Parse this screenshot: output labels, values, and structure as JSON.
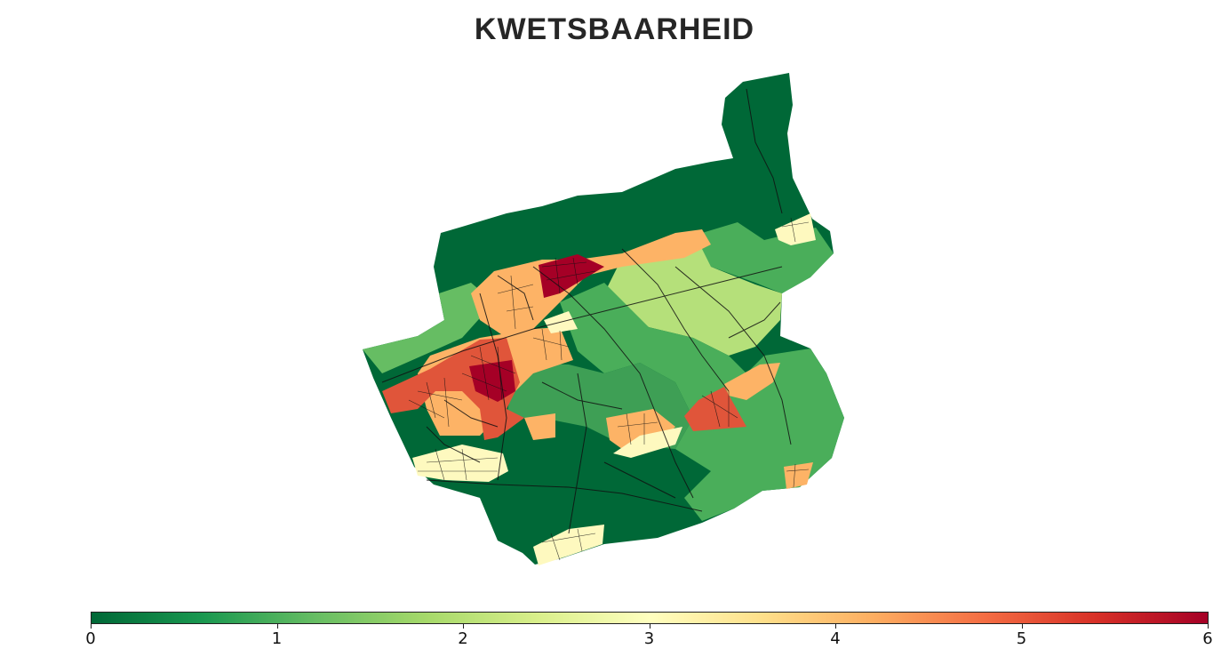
{
  "title": "KWETSBAARHEID",
  "colorscale": {
    "name": "RdYlGn_r",
    "min": 0,
    "max": 6,
    "stops": [
      "#006837",
      "#1a9850",
      "#66bd63",
      "#a6d96a",
      "#d9ef8b",
      "#ffffbf",
      "#fee08b",
      "#fdae61",
      "#f46d43",
      "#d73027",
      "#a50026"
    ],
    "tick_labels": [
      "0",
      "1",
      "2",
      "3",
      "4",
      "5",
      "6"
    ]
  },
  "map": {
    "regions": [
      {
        "name": "north-forest",
        "value": 0
      },
      {
        "name": "northeast-fields",
        "value": 1
      },
      {
        "name": "northeast-village",
        "value": 3
      },
      {
        "name": "center-east-fields",
        "value": 1.9
      },
      {
        "name": "center-north-strip",
        "value": 4
      },
      {
        "name": "center-core-north",
        "value": 6
      },
      {
        "name": "west-district",
        "value": 4
      },
      {
        "name": "west-center-core",
        "value": 6
      },
      {
        "name": "west-ring",
        "value": 5
      },
      {
        "name": "southwest-village",
        "value": 3
      },
      {
        "name": "south-village",
        "value": 3
      },
      {
        "name": "east-village",
        "value": 5.2
      },
      {
        "name": "southeast-hamlet",
        "value": 4
      },
      {
        "name": "southern-forest",
        "value": 0
      }
    ]
  }
}
